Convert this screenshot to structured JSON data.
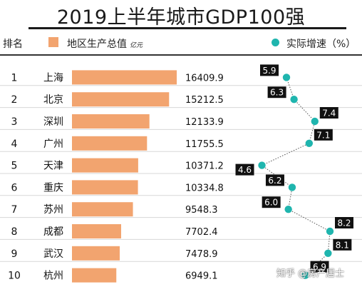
{
  "title": "2019上半年城市GDP100强",
  "headers": {
    "rank": "排名",
    "gdp": "地区生产总值",
    "gdp_unit": "亿元",
    "growth": "实际增速（%）"
  },
  "watermark": "知乎 @房产居士",
  "colors": {
    "bar": "#f2a46f",
    "dot": "#1fb5ae",
    "label_bg": "#111111"
  },
  "chart_data": {
    "type": "bar",
    "title": "2019上半年城市GDP100强",
    "ranks": [
      "1",
      "2",
      "3",
      "4",
      "5",
      "6",
      "7",
      "8",
      "9",
      "10"
    ],
    "categories": [
      "上海",
      "北京",
      "深圳",
      "广州",
      "天津",
      "重庆",
      "苏州",
      "成都",
      "武汉",
      "杭州"
    ],
    "series": [
      {
        "name": "地区生产总值",
        "values": [
          16409.9,
          15212.5,
          12133.9,
          11755.5,
          10371.2,
          10334.8,
          9548.3,
          7702.4,
          7478.9,
          6949.1
        ]
      },
      {
        "name": "实际增速（%）",
        "values": [
          5.9,
          6.3,
          7.4,
          7.1,
          4.6,
          6.2,
          6.0,
          8.2,
          8.1,
          6.9
        ]
      }
    ],
    "value_labels": [
      "16409.9",
      "15212.5",
      "12133.9",
      "11755.5",
      "10371.2",
      "10334.8",
      "9548.3",
      "7702.4",
      "7478.9",
      "6949.1"
    ],
    "growth_labels": [
      "5.9",
      "6.3",
      "7.4",
      "7.1",
      "4.6",
      "6.2",
      "6.0",
      "8.2",
      "8.1",
      "6.9"
    ]
  }
}
